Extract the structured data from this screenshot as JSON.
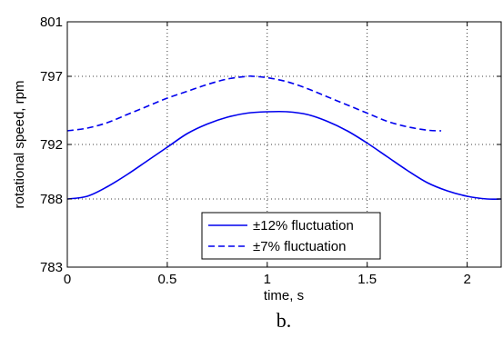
{
  "chart_data": {
    "type": "line",
    "xlabel": "time, s",
    "ylabel": "rotational speed, rpm",
    "xlim": [
      0,
      2.17
    ],
    "ylim": [
      783,
      801
    ],
    "x_ticks": [
      0,
      0.5,
      1,
      1.5,
      2
    ],
    "x_tick_labels": [
      "0",
      "0.5",
      "1",
      "1.5",
      "2"
    ],
    "y_ticks": [
      783,
      788,
      792,
      797,
      801
    ],
    "y_tick_labels": [
      "783",
      "788",
      "792",
      "797",
      "801"
    ],
    "grid": true,
    "legend_position": "bottom-center",
    "caption": "b.",
    "series": [
      {
        "name": "±12% fluctuation",
        "style": "solid",
        "color": "#0000ee",
        "x": [
          0,
          0.1,
          0.2,
          0.3,
          0.4,
          0.5,
          0.6,
          0.7,
          0.8,
          0.9,
          1.0,
          1.1,
          1.2,
          1.3,
          1.4,
          1.5,
          1.6,
          1.7,
          1.8,
          1.9,
          2.0,
          2.1,
          2.17
        ],
        "y": [
          788.0,
          788.2,
          788.9,
          789.8,
          790.8,
          791.8,
          792.8,
          793.5,
          794.0,
          794.3,
          794.4,
          794.4,
          794.2,
          793.7,
          793.0,
          792.1,
          791.1,
          790.1,
          789.2,
          788.6,
          788.2,
          788.0,
          788.0
        ]
      },
      {
        "name": "±7% fluctuation",
        "style": "dashed",
        "color": "#0000ee",
        "x": [
          0,
          0.1,
          0.2,
          0.3,
          0.4,
          0.5,
          0.6,
          0.7,
          0.8,
          0.9,
          0.93,
          1.0,
          1.1,
          1.2,
          1.3,
          1.4,
          1.5,
          1.6,
          1.7,
          1.8,
          1.87
        ],
        "y": [
          793.0,
          793.2,
          793.6,
          794.2,
          794.8,
          795.4,
          795.9,
          796.4,
          796.8,
          797.0,
          797.0,
          796.9,
          796.6,
          796.1,
          795.5,
          794.9,
          794.3,
          793.7,
          793.3,
          793.05,
          793.0
        ]
      }
    ]
  }
}
